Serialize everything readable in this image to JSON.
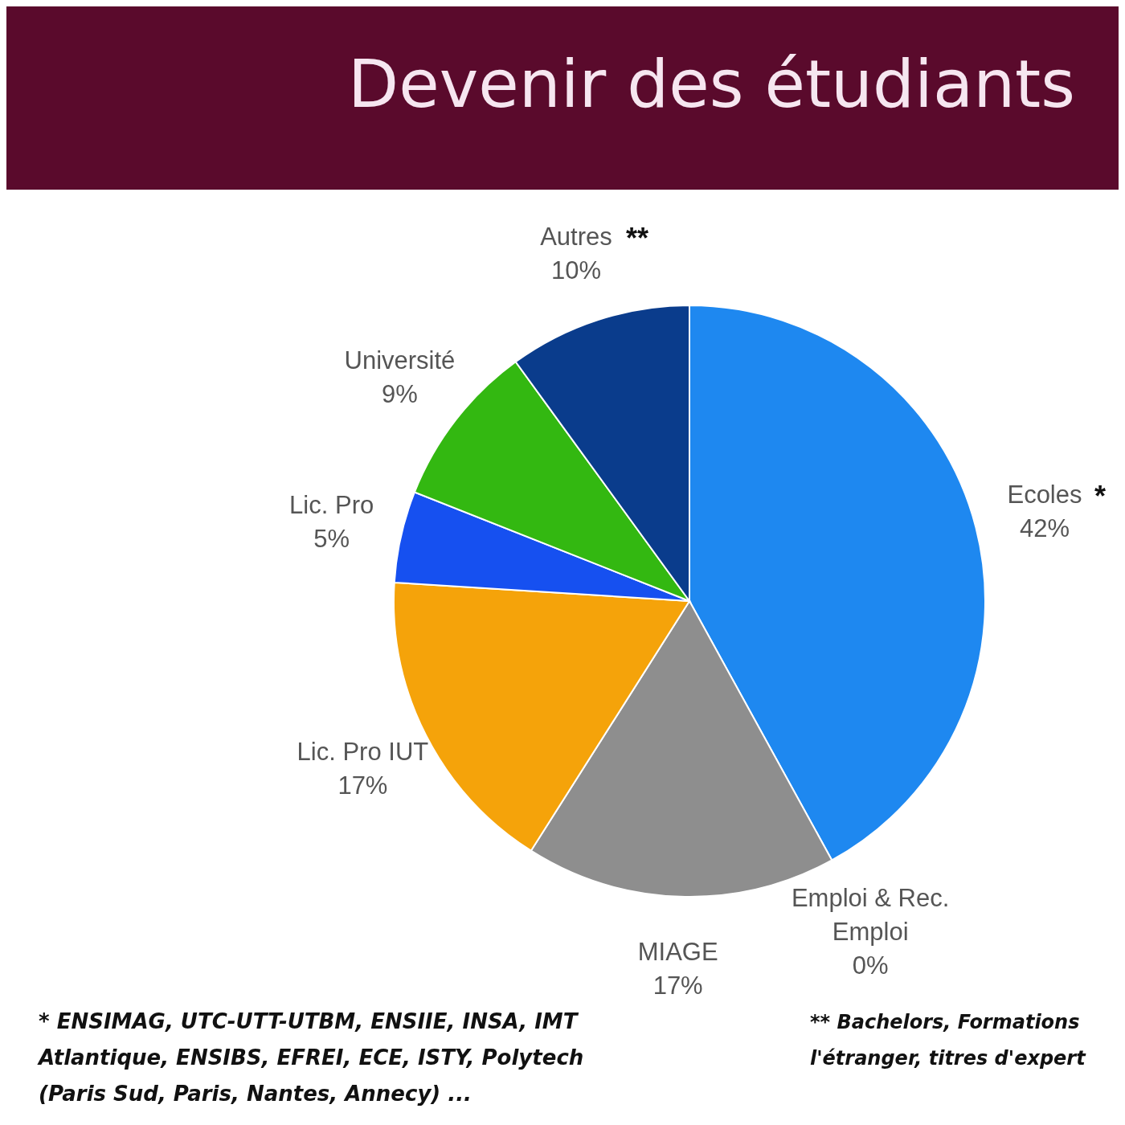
{
  "chart_data": {
    "type": "pie",
    "title": "Devenir des étudiants",
    "categories": [
      "Ecoles",
      "Emploi & Rec. Emploi",
      "MIAGE",
      "Lic. Pro IUT",
      "Lic. Pro",
      "Université",
      "Autres"
    ],
    "values": [
      42,
      0,
      17,
      17,
      5,
      9,
      10
    ],
    "colors": [
      "#1e88f0",
      null,
      "#8e8e8e",
      "#f5a30a",
      "#1650f0",
      "#33b811",
      "#0a3c8c"
    ],
    "value_labels": [
      "42%",
      "0%",
      "17%",
      "17%",
      "5%",
      "9%",
      "10%"
    ],
    "annotations": [
      {
        "text": "*",
        "x": "Ecoles"
      },
      {
        "text": "**",
        "x": "Autres"
      },
      "* ENSIMAG, UTC-UTT-UTBM, ENSIIE, INSA, IMT Atlantique, ENSIBS, EFREI, ECE, ISTY, Polytech (Paris Sud, Paris, Nantes, Annecy) ...",
      "** Bachelors, Formations l'étranger, titres d'expert"
    ]
  }
}
